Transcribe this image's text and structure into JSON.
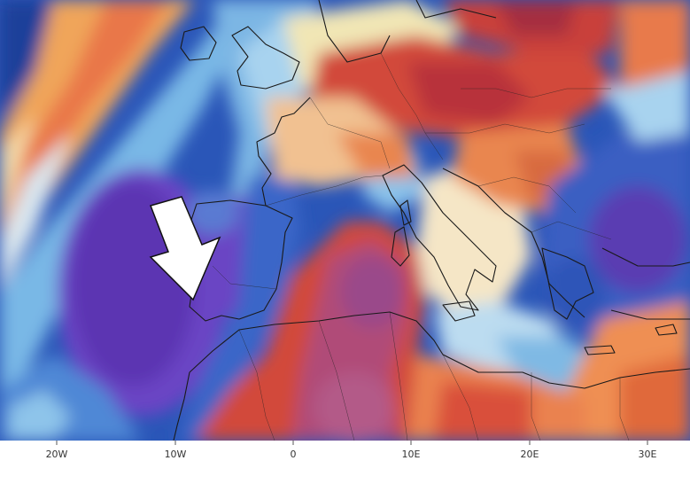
{
  "map": {
    "kind": "weather-anomaly-map",
    "region": "Western Europe, North Africa and the Mediterranean",
    "colors": {
      "ocean_deep_blue": "#1f3f9a",
      "blue": "#2b5fc0",
      "light_blue": "#79b8e6",
      "pale": "#e9e4cf",
      "purple": "#6a44c4",
      "violet": "#5b34b2",
      "orange": "#f0a55a",
      "red_orange": "#e0693a",
      "red": "#c9403a",
      "dark_red": "#a6384a",
      "magenta_red": "#b04c78",
      "border_lines": "#1a1a1a",
      "arrow_fill": "#ffffff",
      "arrow_stroke": "#111111"
    },
    "annotation": {
      "type": "arrow",
      "direction": "down-right",
      "fill": "white",
      "points_to": "Portugal coast"
    }
  },
  "axis": {
    "labels": [
      "20W",
      "10W",
      "0",
      "10E",
      "20E",
      "30E"
    ]
  }
}
